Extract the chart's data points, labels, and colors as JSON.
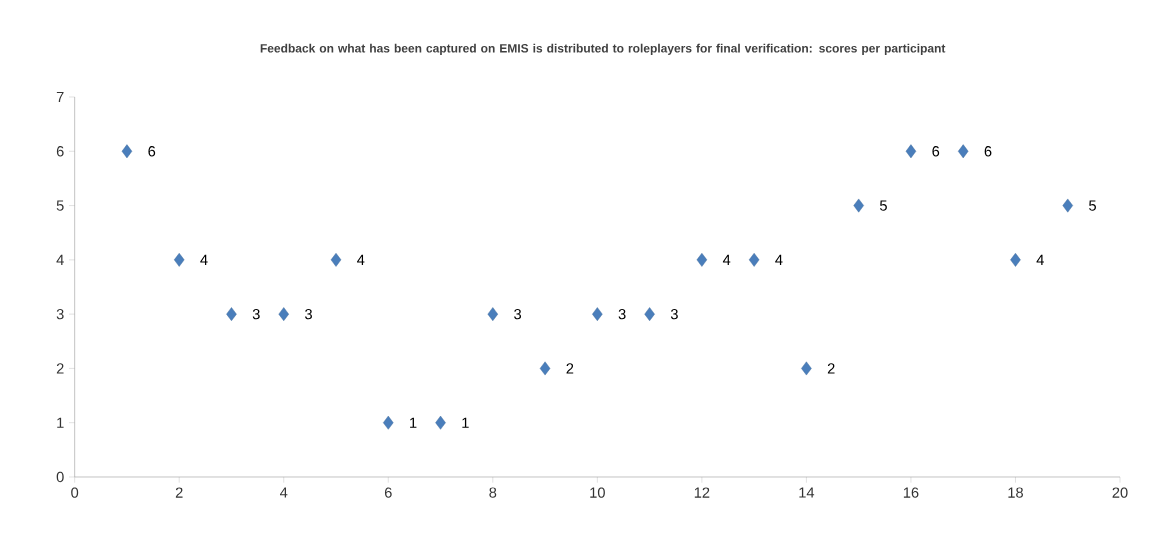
{
  "chart_data": {
    "type": "scatter",
    "title": "Feedback on what has been captured on EMIS is distributed to roleplayers for final verification: scores per participant",
    "x": [
      1,
      2,
      3,
      4,
      5,
      6,
      7,
      8,
      9,
      10,
      11,
      12,
      13,
      14,
      15,
      16,
      17,
      18,
      19
    ],
    "values": [
      6,
      4,
      3,
      3,
      4,
      1,
      1,
      3,
      2,
      3,
      3,
      4,
      4,
      2,
      5,
      6,
      6,
      4,
      5
    ],
    "color": "#4a7ebb",
    "marker": "diamond",
    "data_labels": true,
    "xlim": [
      0,
      20
    ],
    "xticks": [
      0,
      2,
      4,
      6,
      8,
      10,
      12,
      14,
      16,
      18,
      20
    ],
    "ylim": [
      0,
      7
    ],
    "yticks": [
      0,
      1,
      2,
      3,
      4,
      5,
      6,
      7
    ]
  }
}
